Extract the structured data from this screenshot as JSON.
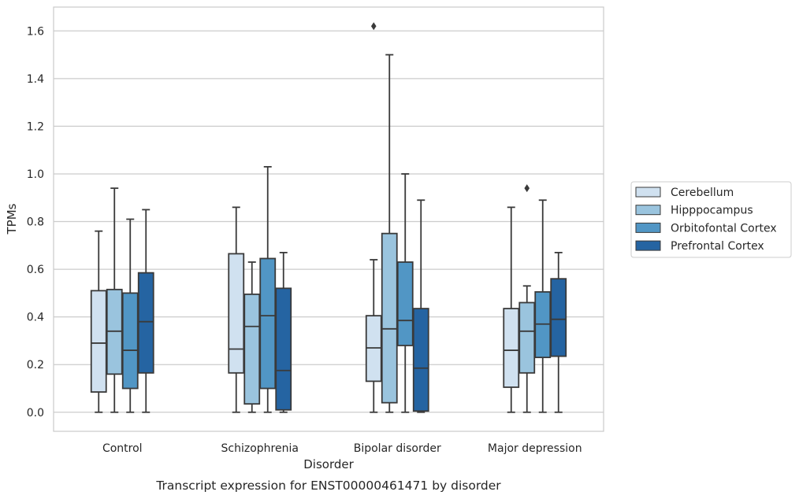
{
  "chart_data": {
    "type": "box",
    "title": "",
    "caption": "Transcript expression for ENST00000461471 by disorder",
    "xlabel": "Disorder",
    "ylabel": "TPMs",
    "ylim": [
      -0.08,
      1.7
    ],
    "yticks": [
      0.0,
      0.2,
      0.4,
      0.6,
      0.8,
      1.0,
      1.2,
      1.4,
      1.6
    ],
    "ytick_labels": [
      "0.0",
      "0.2",
      "0.4",
      "0.6",
      "0.8",
      "1.0",
      "1.2",
      "1.4",
      "1.6"
    ],
    "grid": "horizontal",
    "legend_position": "right",
    "categories": [
      "Control",
      "Schizophrenia",
      "Bipolar disorder",
      "Major depression"
    ],
    "series": [
      {
        "name": "Cerebellum",
        "color": "#d0e1f0",
        "boxes": [
          {
            "min": 0.0,
            "q1": 0.085,
            "median": 0.29,
            "q3": 0.51,
            "max": 0.76,
            "outliers": []
          },
          {
            "min": 0.0,
            "q1": 0.165,
            "median": 0.265,
            "q3": 0.665,
            "max": 0.86,
            "outliers": []
          },
          {
            "min": 0.0,
            "q1": 0.13,
            "median": 0.27,
            "q3": 0.405,
            "max": 0.64,
            "outliers": [
              1.62
            ]
          },
          {
            "min": 0.0,
            "q1": 0.105,
            "median": 0.26,
            "q3": 0.435,
            "max": 0.86,
            "outliers": []
          }
        ]
      },
      {
        "name": "Hipppocampus",
        "color": "#9ac4de",
        "boxes": [
          {
            "min": 0.0,
            "q1": 0.16,
            "median": 0.34,
            "q3": 0.515,
            "max": 0.94,
            "outliers": []
          },
          {
            "min": 0.0,
            "q1": 0.035,
            "median": 0.36,
            "q3": 0.495,
            "max": 0.63,
            "outliers": []
          },
          {
            "min": 0.0,
            "q1": 0.04,
            "median": 0.35,
            "q3": 0.75,
            "max": 1.5,
            "outliers": []
          },
          {
            "min": 0.0,
            "q1": 0.165,
            "median": 0.34,
            "q3": 0.46,
            "max": 0.53,
            "outliers": [
              0.94
            ]
          }
        ]
      },
      {
        "name": "Orbitofontal Cortex",
        "color": "#5196c5",
        "boxes": [
          {
            "min": 0.0,
            "q1": 0.1,
            "median": 0.26,
            "q3": 0.5,
            "max": 0.81,
            "outliers": []
          },
          {
            "min": 0.0,
            "q1": 0.1,
            "median": 0.405,
            "q3": 0.645,
            "max": 1.03,
            "outliers": []
          },
          {
            "min": 0.0,
            "q1": 0.28,
            "median": 0.385,
            "q3": 0.63,
            "max": 1.0,
            "outliers": []
          },
          {
            "min": 0.0,
            "q1": 0.23,
            "median": 0.37,
            "q3": 0.505,
            "max": 0.89,
            "outliers": []
          }
        ]
      },
      {
        "name": "Prefrontal Cortex",
        "color": "#2564a2",
        "boxes": [
          {
            "min": 0.0,
            "q1": 0.165,
            "median": 0.38,
            "q3": 0.585,
            "max": 0.85,
            "outliers": []
          },
          {
            "min": 0.0,
            "q1": 0.01,
            "median": 0.175,
            "q3": 0.52,
            "max": 0.67,
            "outliers": []
          },
          {
            "min": 0.0,
            "q1": 0.005,
            "median": 0.185,
            "q3": 0.435,
            "max": 0.89,
            "outliers": []
          },
          {
            "min": 0.0,
            "q1": 0.235,
            "median": 0.39,
            "q3": 0.56,
            "max": 0.67,
            "outliers": []
          }
        ]
      }
    ]
  }
}
